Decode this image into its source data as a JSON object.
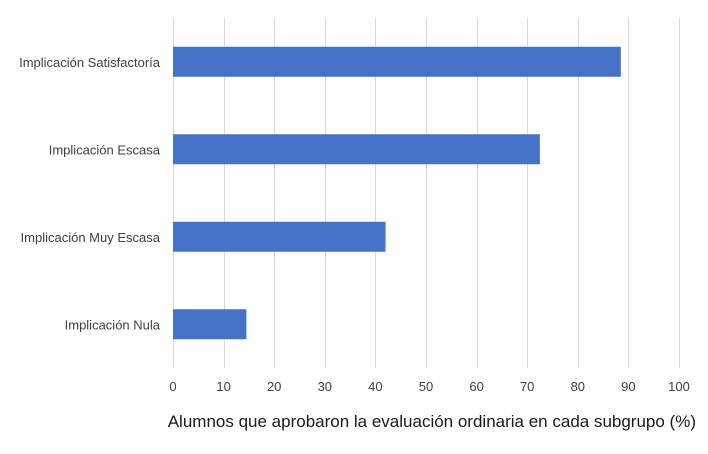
{
  "chart_data": {
    "type": "bar",
    "orientation": "horizontal",
    "categories": [
      "Implicación Satisfactoría",
      "Implicación Escasa",
      "Implicación Muy Escasa",
      "Implicación Nula"
    ],
    "values": [
      88.5,
      72.5,
      42,
      14.5
    ],
    "xlabel": "Alumnos que aprobaron la evaluación ordinaria en cada subgrupo (%)",
    "ylabel": "",
    "xlim": [
      0,
      100
    ],
    "xticks": [
      0,
      10,
      20,
      30,
      40,
      50,
      60,
      70,
      80,
      90,
      100
    ],
    "grid": "vertical",
    "legend": "none",
    "colors": {
      "bar": "#4472C4",
      "grid": "#D9D9D9",
      "text": "#404040"
    }
  }
}
